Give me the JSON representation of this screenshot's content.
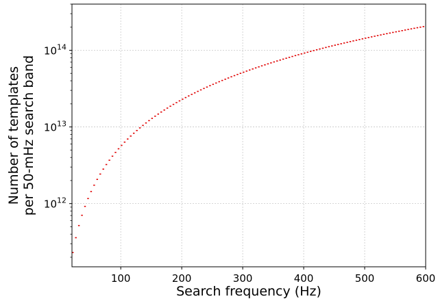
{
  "chart_data": {
    "type": "line",
    "style": "horizontal step segments (one per search band)",
    "xlabel": "Search frequency (Hz)",
    "ylabel_lines": [
      "Number of templates",
      "per 50-mHz search band"
    ],
    "xlim": [
      20,
      600
    ],
    "ylim": [
      150000000000.0,
      400000000000000.0
    ],
    "yscale": "log",
    "grid": true,
    "xticks": [
      100,
      200,
      300,
      400,
      500,
      600
    ],
    "xtick_labels": [
      "100",
      "200",
      "300",
      "400",
      "500",
      "600"
    ],
    "yticks": [
      1000000000000.0,
      10000000000000.0,
      100000000000000.0
    ],
    "ytick_labels": [
      {
        "base": "10",
        "exp": "12"
      },
      {
        "base": "10",
        "exp": "13"
      },
      {
        "base": "10",
        "exp": "14"
      }
    ],
    "series": [
      {
        "color": "#e00000",
        "band_start_hz": 20,
        "band_width_hz": 5,
        "band_end_hz": 600,
        "model": "N = A * f^p",
        "A": 230000000000.0,
        "reference_f_hz": 20,
        "p": 2.0
      }
    ]
  }
}
